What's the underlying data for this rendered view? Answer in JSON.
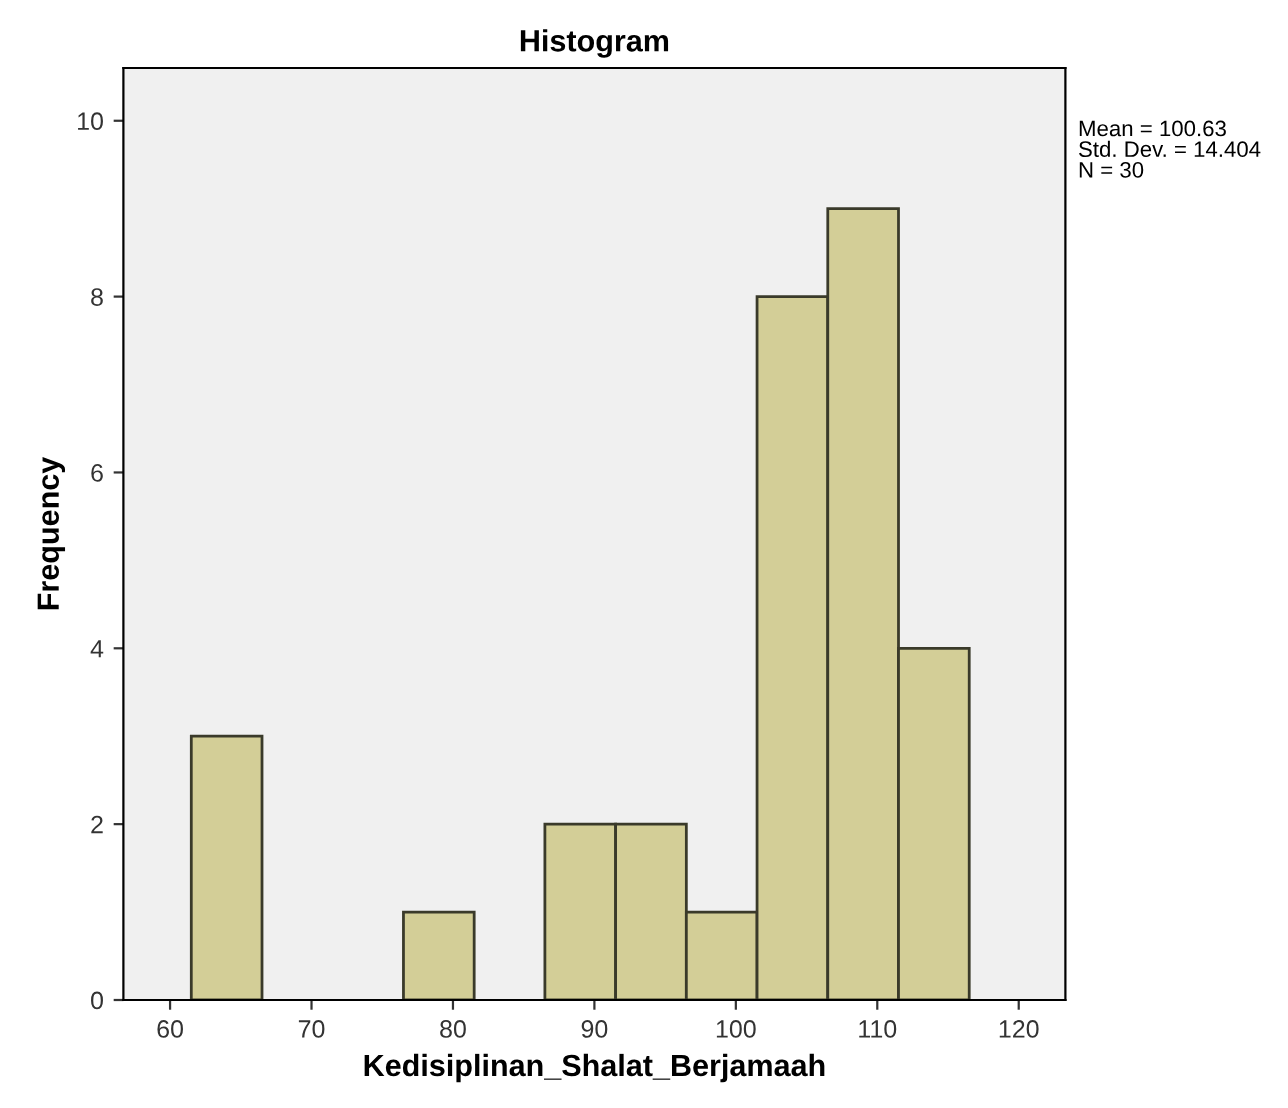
{
  "chart_data": {
    "type": "histogram",
    "title": "Histogram",
    "xlabel": "Kedisiplinan_Shalat_Berjamaah",
    "ylabel": "Frequency",
    "bins": [
      61.5,
      66.5,
      71.5,
      76.5,
      81.5,
      86.5,
      91.5,
      96.5,
      101.5,
      106.5,
      111.5,
      116.5
    ],
    "values": [
      3,
      0,
      0,
      1,
      0,
      2,
      2,
      1,
      8,
      9,
      4
    ],
    "color": "#d3ce97",
    "xlim": [
      56.7,
      123.3
    ],
    "ylim": [
      0,
      10.6
    ],
    "xticks": [
      60,
      70,
      80,
      90,
      100,
      110,
      120
    ],
    "yticks": [
      0,
      2,
      4,
      6,
      8,
      10
    ],
    "annotations": [
      "Mean = 100.63\nStd. Dev. = 14.404\nN = 30"
    ],
    "grid": false,
    "legend": false
  }
}
